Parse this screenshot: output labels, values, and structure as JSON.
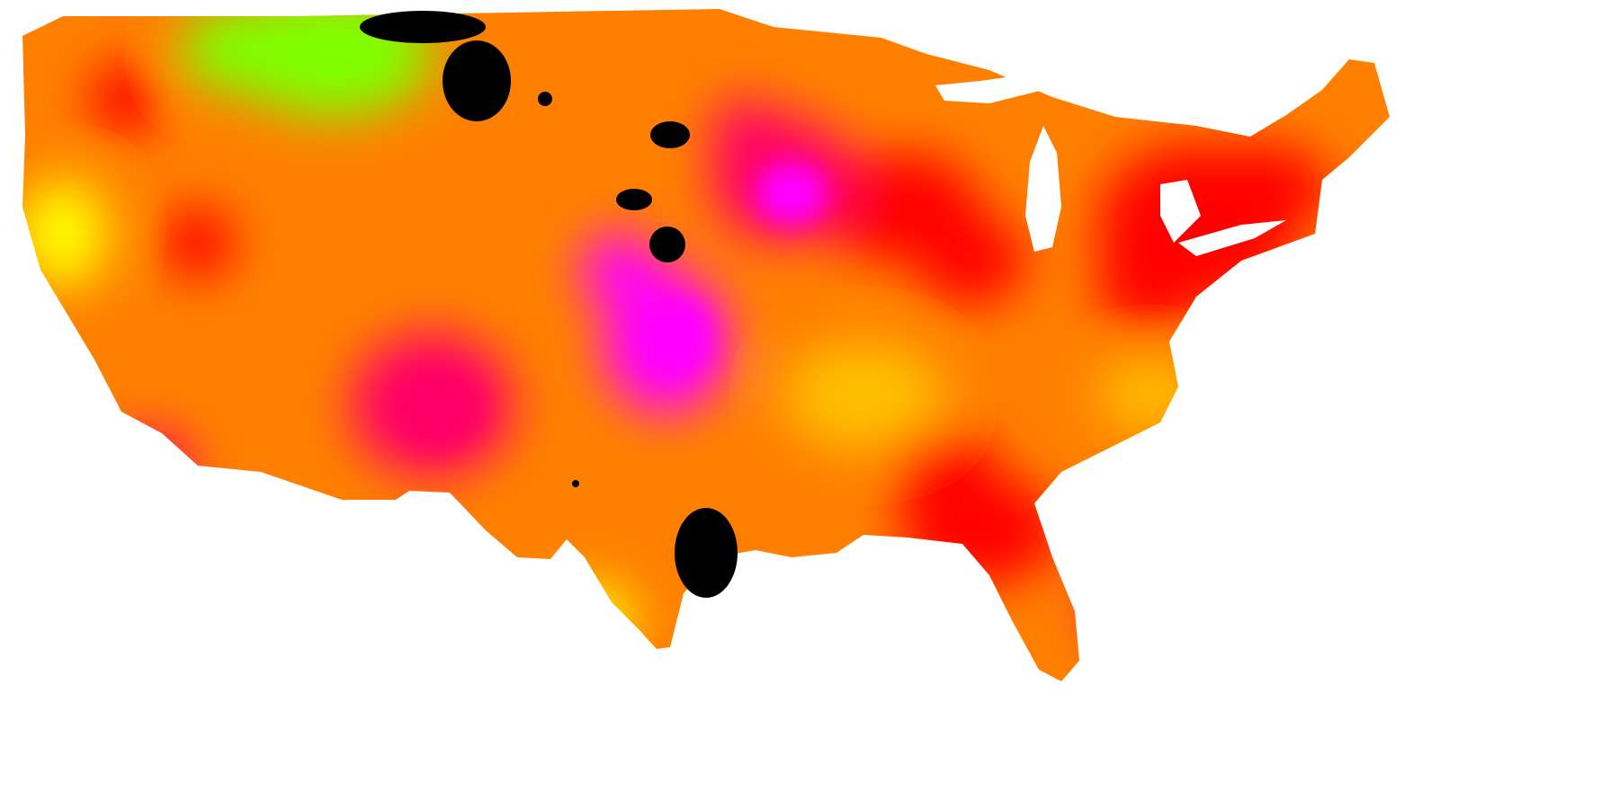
{
  "map": {
    "kind": "heatmap",
    "region": "contiguous-united-states",
    "background": "#ffffff",
    "labels_visible": false,
    "legend_visible": false,
    "color_scale": [
      "#7fff00",
      "#ffff00",
      "#ffbf00",
      "#ff8000",
      "#ff4000",
      "#ff0000",
      "#ff0066",
      "#ff00ff"
    ],
    "no_data_color": "#000000",
    "hotspots": [
      {
        "id": "northeast-corridor",
        "level": 5
      },
      {
        "id": "great-lakes-west",
        "level": 5
      },
      {
        "id": "upper-midwest",
        "level": 6
      },
      {
        "id": "central-plains",
        "level": 7
      },
      {
        "id": "southwest",
        "level": 6
      },
      {
        "id": "southeast",
        "level": 5
      },
      {
        "id": "gulf-coast-panhandle",
        "level": 6
      },
      {
        "id": "southern-california",
        "level": 6
      },
      {
        "id": "pacific-northwest",
        "level": 5
      }
    ],
    "coolspots": [
      {
        "id": "northern-rockies",
        "level": 0
      },
      {
        "id": "upper-northeast",
        "level": 1
      },
      {
        "id": "pacific-coast-north",
        "level": 1
      },
      {
        "id": "ohio-valley",
        "level": 2
      },
      {
        "id": "west-texas",
        "level": 1
      },
      {
        "id": "florida-peninsula",
        "level": 2
      }
    ],
    "no_data_areas": [
      {
        "id": "north-dakota-east"
      },
      {
        "id": "south-dakota-east"
      },
      {
        "id": "nebraska-north"
      },
      {
        "id": "kansas-north"
      },
      {
        "id": "oklahoma-southwest"
      }
    ]
  }
}
